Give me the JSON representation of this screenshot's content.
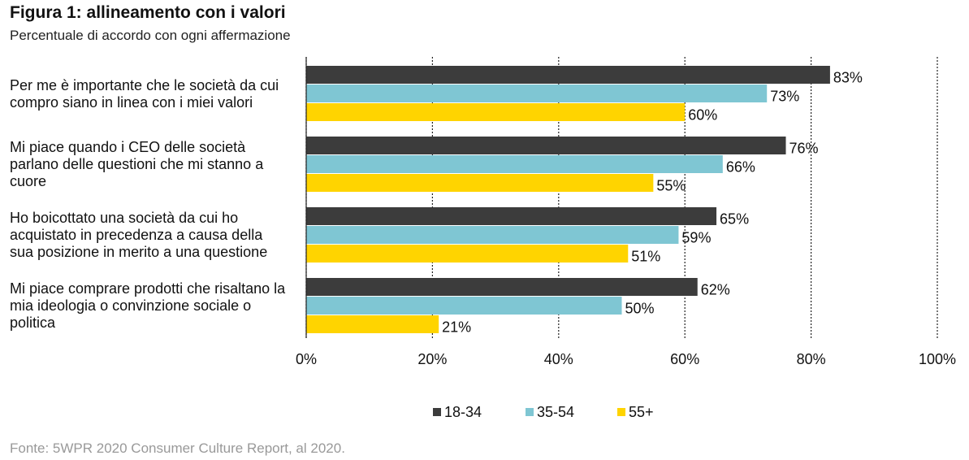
{
  "chart_data": {
    "type": "hbar",
    "title": "Figura 1: allineamento con i valori",
    "subtitle": "Percentuale di accordo con ogni affermazione",
    "source": "Fonte: 5WPR 2020 Consumer Culture Report, al 2020.",
    "categories": [
      "Per me è importante che le società da cui compro siano in linea con i miei valori",
      "Mi piace quando i CEO delle società parlano delle questioni che mi stanno a cuore",
      "Ho boicottato una società da cui ho acquistato in precedenza a causa della sua posizione in merito a una questione",
      "Mi piace comprare prodotti che risaltano la mia ideologia o convinzione sociale o politica"
    ],
    "series": [
      {
        "name": "18-34",
        "color": "#3c3c3c",
        "values": [
          83,
          76,
          65,
          62
        ],
        "value_labels": [
          "83%",
          "76%",
          "65%",
          "62%"
        ]
      },
      {
        "name": "35-54",
        "color": "#7fc6d3",
        "values": [
          73,
          66,
          59,
          50
        ],
        "value_labels": [
          "73%",
          "66%",
          "59%",
          "50%"
        ]
      },
      {
        "name": "55+",
        "color": "#ffd400",
        "values": [
          60,
          55,
          51,
          21
        ],
        "value_labels": [
          "60%",
          "55%",
          "51%",
          "21%"
        ]
      }
    ],
    "xlim": [
      0,
      100
    ],
    "xticks": [
      {
        "value": 0,
        "label": "0%"
      },
      {
        "value": 20,
        "label": "20%"
      },
      {
        "value": 40,
        "label": "40%"
      },
      {
        "value": 60,
        "label": "60%"
      },
      {
        "value": 80,
        "label": "80%"
      },
      {
        "value": 100,
        "label": "100%"
      }
    ],
    "grid": true,
    "legend": "bottom"
  }
}
